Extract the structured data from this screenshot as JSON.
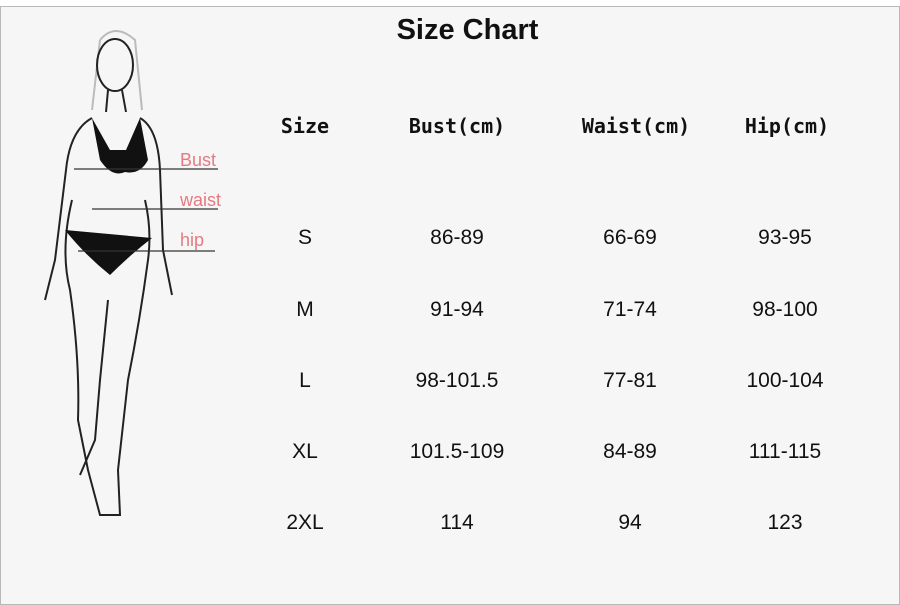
{
  "title": "Size Chart",
  "figure": {
    "labels": [
      "Bust",
      "waist",
      "hip"
    ],
    "label_color": "#e57a82"
  },
  "table": {
    "headers": [
      "Size",
      "Bust(cm)",
      "Waist(cm)",
      "Hip(cm)"
    ],
    "rows": [
      [
        "S",
        "86-89",
        "66-69",
        "93-95"
      ],
      [
        "M",
        "91-94",
        "71-74",
        "98-100"
      ],
      [
        "L",
        "98-101.5",
        "77-81",
        "100-104"
      ],
      [
        "XL",
        "101.5-109",
        "84-89",
        "111-115"
      ],
      [
        "2XL",
        "114",
        "94",
        "123"
      ]
    ]
  }
}
